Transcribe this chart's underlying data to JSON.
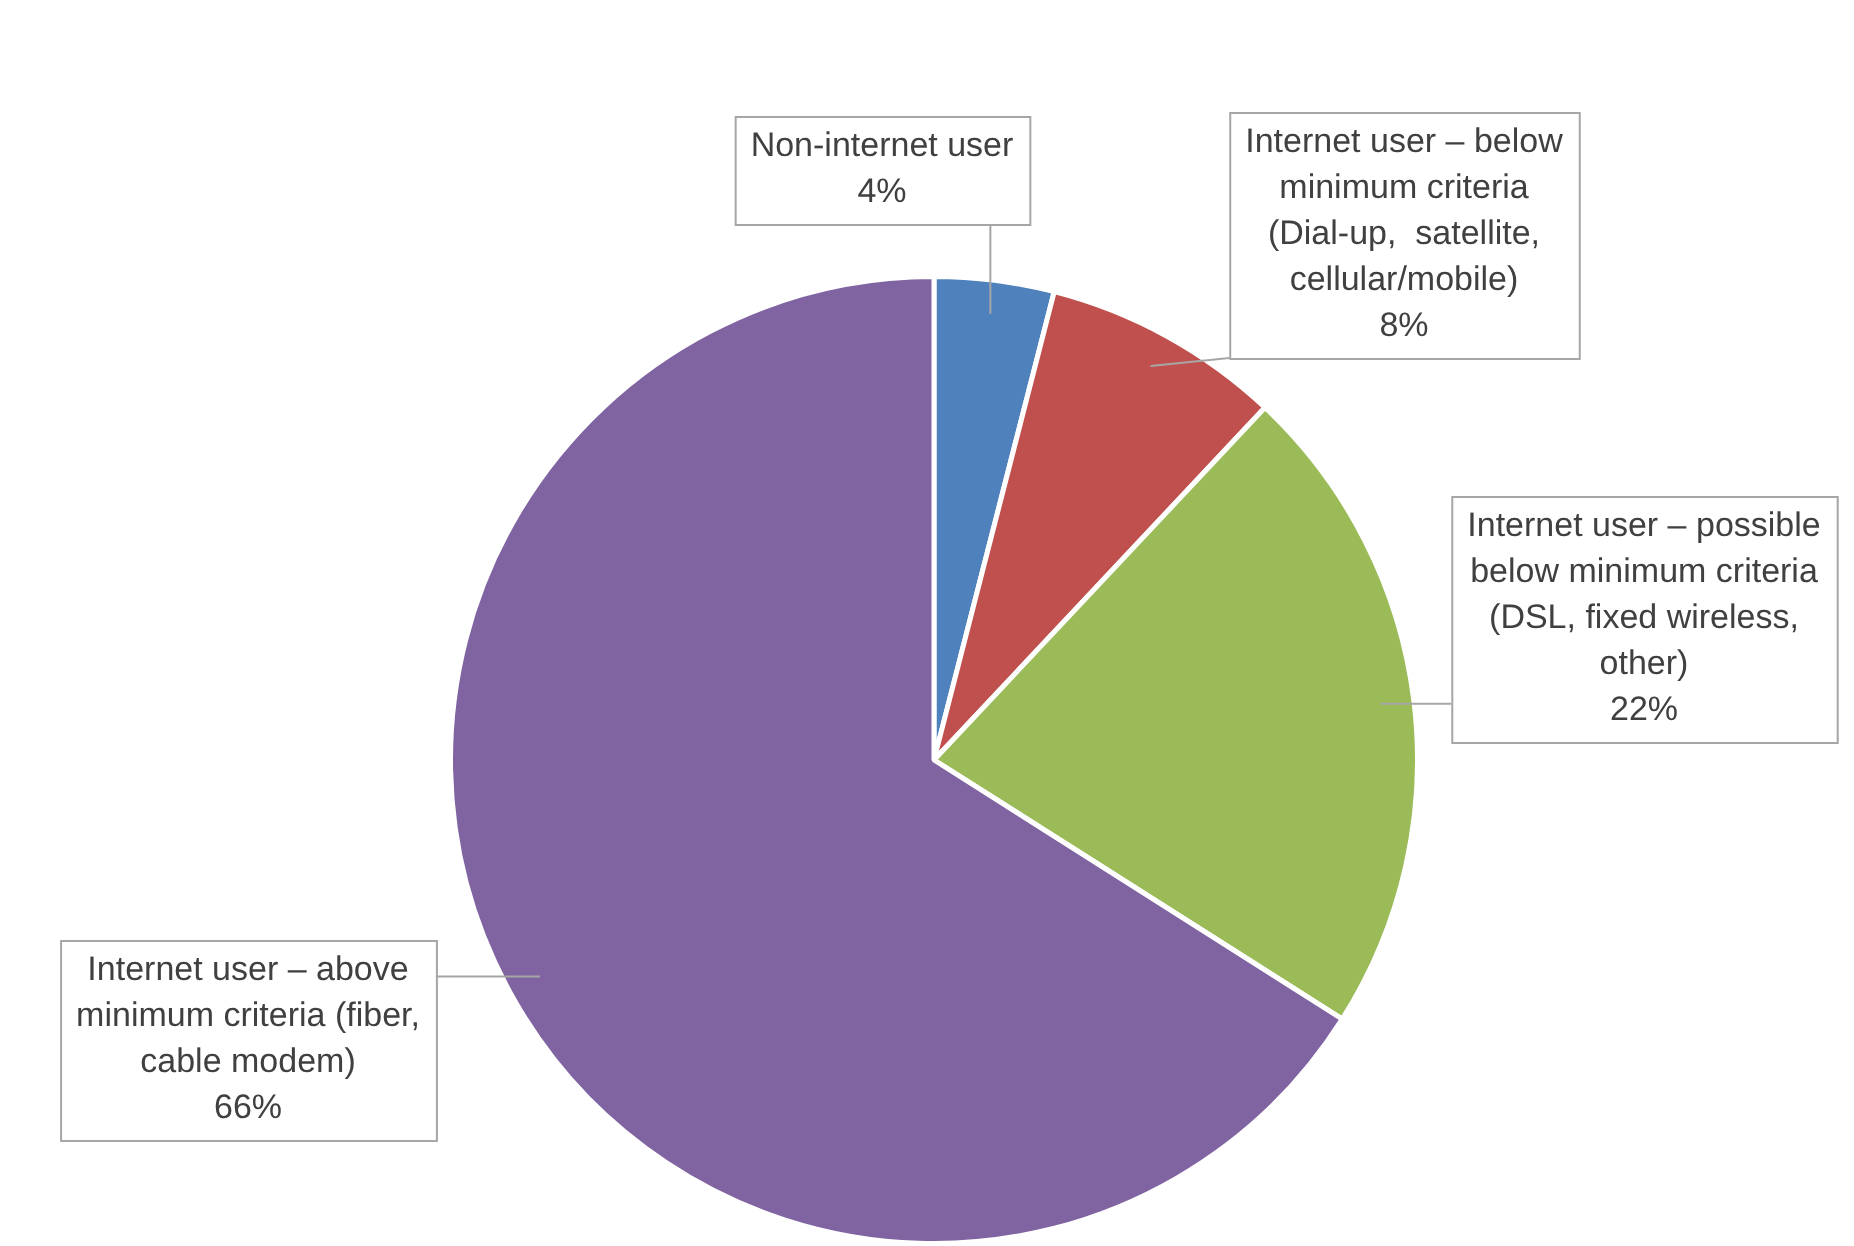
{
  "chart_data": {
    "type": "pie",
    "categories": [
      "Non-internet user",
      "Internet user – below minimum criteria (Dial-up,  satellite, cellular/mobile)",
      "Internet user – possible below minimum criteria (DSL, fixed wireless, other)",
      "Internet user – above minimum criteria (fiber, cable modem)"
    ],
    "values": [
      4,
      8,
      22,
      66
    ],
    "colors": [
      "#4f81bd",
      "#c0504d",
      "#9bbb59",
      "#8064a2"
    ],
    "value_labels": [
      "4%",
      "8%",
      "22%",
      "66%"
    ],
    "legend": false
  }
}
